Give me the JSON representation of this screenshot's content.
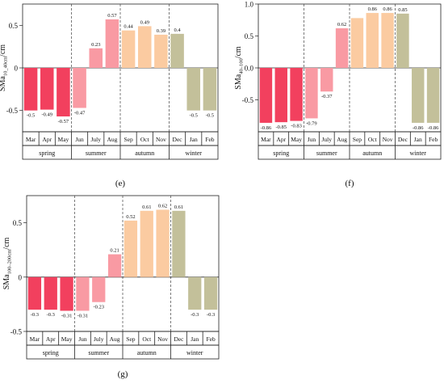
{
  "figure": {
    "seasons": [
      "spring",
      "summer",
      "autumn",
      "winter"
    ],
    "months": [
      "Mar",
      "Apr",
      "May",
      "Jun",
      "July",
      "Aug",
      "Sep",
      "Oct",
      "Nov",
      "Dec",
      "Jan",
      "Feb"
    ],
    "season_colors": {
      "spring": "#f2405e",
      "summer": "#f99aa3",
      "autumn": "#fbcba1",
      "winter": "#c3c09a"
    }
  },
  "chart_data": [
    {
      "type": "bar",
      "panel": "(e)",
      "ylabel_main": "SMa",
      "ylabel_sub": "10_40cm",
      "ylabel_unit": "/cm",
      "ylim": [
        -0.75,
        0.75
      ],
      "yticks": [
        -0.5,
        0,
        0.5
      ],
      "ytick_labels": [
        "-0.5",
        "0",
        "0.5"
      ],
      "categories": [
        "Mar",
        "Apr",
        "May",
        "Jun",
        "July",
        "Aug",
        "Sep",
        "Oct",
        "Nov",
        "Dec",
        "Jan",
        "Feb"
      ],
      "values": [
        -0.5,
        -0.49,
        -0.57,
        -0.47,
        0.23,
        0.57,
        0.44,
        0.49,
        0.39,
        0.4,
        -0.5,
        -0.5
      ],
      "labels": [
        "-0.5",
        "-0.49",
        "-0.57",
        "-0.47",
        "0.23",
        "0.57",
        "0.44",
        "0.49",
        "0.39",
        "0.4",
        "-0.5",
        "-0.5"
      ]
    },
    {
      "type": "bar",
      "panel": "(f)",
      "ylabel_main": "SMa",
      "ylabel_sub": "40–100",
      "ylabel_unit": "/cm",
      "ylim": [
        -1.0,
        1.0
      ],
      "yticks": [
        -0.5,
        0,
        0.5,
        1.0
      ],
      "ytick_labels": [
        "-0.5",
        "0.0",
        "0.5",
        "1.0"
      ],
      "categories": [
        "Mar",
        "Apr",
        "May",
        "Jun",
        "July",
        "Aug",
        "Sep",
        "Oct",
        "Nov",
        "Dec",
        "Jan",
        "Feb"
      ],
      "values": [
        -0.86,
        -0.85,
        -0.83,
        -0.79,
        -0.37,
        0.62,
        0.78,
        0.86,
        0.86,
        0.85,
        -0.86,
        -0.86
      ],
      "labels": [
        "-0.86",
        "-0.85",
        "-0.83",
        "-0.79",
        "-0.37",
        "0.62",
        "",
        "0.86",
        "0.86",
        "0.85",
        "-0.86",
        "-0.86"
      ]
    },
    {
      "type": "bar",
      "panel": "(g)",
      "ylabel_main": "SMa",
      "ylabel_sub": "100–200cm",
      "ylabel_unit": "/cm",
      "ylim": [
        -0.5,
        0.75
      ],
      "yticks": [
        -0.5,
        0,
        0.5
      ],
      "ytick_labels": [
        "-0.5",
        "0",
        "0.5"
      ],
      "categories": [
        "Mar",
        "Apr",
        "May",
        "Jun",
        "July",
        "Aug",
        "Sep",
        "Oct",
        "Nov",
        "Dec",
        "Jan",
        "Feb"
      ],
      "values": [
        -0.3,
        -0.3,
        -0.31,
        -0.31,
        -0.23,
        0.21,
        0.52,
        0.61,
        0.62,
        0.61,
        -0.3,
        -0.3
      ],
      "labels": [
        "-0.3",
        "-0.3",
        "-0.31",
        "-0.31",
        "-0.23",
        "0.21",
        "0.52",
        "0.61",
        "0.62",
        "0.61",
        "-0.3",
        "-0.3"
      ]
    }
  ]
}
